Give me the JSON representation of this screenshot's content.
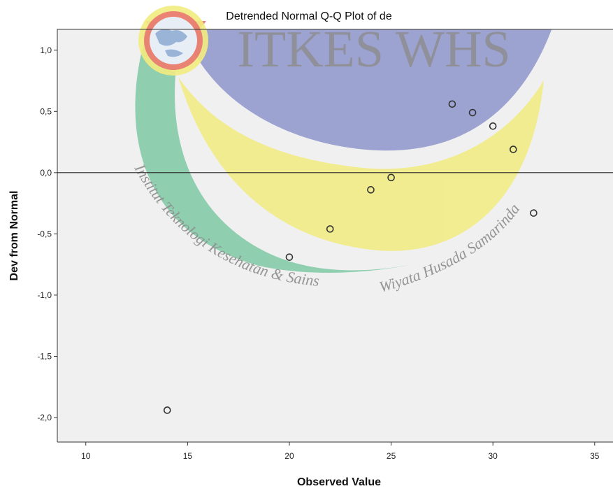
{
  "chart_data": {
    "type": "scatter",
    "title": "Detrended Normal Q-Q Plot of de",
    "xlabel": "Observed Value",
    "ylabel": "Dev from Normal",
    "xlim": [
      8.6,
      35.9
    ],
    "ylim": [
      -2.2,
      1.17
    ],
    "xticks": [
      10,
      15,
      20,
      25,
      30,
      35
    ],
    "xtick_labels": [
      "10",
      "15",
      "20",
      "25",
      "30",
      "35"
    ],
    "yticks": [
      1.0,
      0.5,
      0.0,
      -0.5,
      -1.0,
      -1.5,
      -2.0
    ],
    "ytick_labels": [
      "1,0",
      "0,5",
      "0,0",
      "-0,5",
      "-1,0",
      "-1,5",
      "-2,0"
    ],
    "reference_line_y": 0,
    "points": [
      {
        "x": 14,
        "y": -1.94
      },
      {
        "x": 20,
        "y": -0.69
      },
      {
        "x": 22,
        "y": -0.46
      },
      {
        "x": 24,
        "y": -0.14
      },
      {
        "x": 25,
        "y": -0.04
      },
      {
        "x": 28,
        "y": 0.56
      },
      {
        "x": 29,
        "y": 0.49
      },
      {
        "x": 30,
        "y": 0.38
      },
      {
        "x": 31,
        "y": 0.19
      },
      {
        "x": 32,
        "y": -0.33
      }
    ],
    "plot_background": "#f0f0f0",
    "marker_color": "#333333"
  },
  "watermark": {
    "brand": "ITKES WHS",
    "arc_text_left": "Institut Teknologi Kesehatan & Sains",
    "arc_text_right": "Wiyata Husada Samarinda",
    "colors": {
      "blue": "#8e96cc",
      "yellow": "#f2ec80",
      "green": "#7fc9a4",
      "red": "#e87070",
      "brand_text": "#8c8c8c"
    }
  }
}
